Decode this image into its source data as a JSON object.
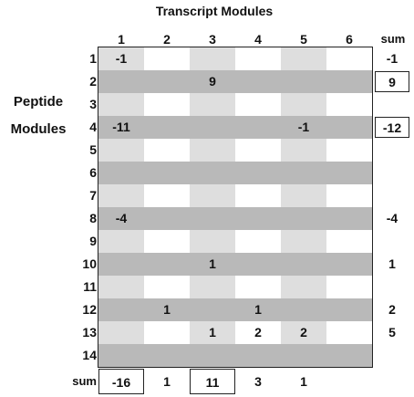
{
  "title": "Transcript Modules",
  "row_axis_label": [
    "Peptide",
    "Modules"
  ],
  "sum_label": "sum",
  "columns": [
    "1",
    "2",
    "3",
    "4",
    "5",
    "6"
  ],
  "rows": [
    "1",
    "2",
    "3",
    "4",
    "5",
    "6",
    "7",
    "8",
    "9",
    "10",
    "11",
    "12",
    "13",
    "14"
  ],
  "cells": [
    {
      "row": 1,
      "col": 1,
      "value": "-1"
    },
    {
      "row": 2,
      "col": 3,
      "value": "9"
    },
    {
      "row": 4,
      "col": 1,
      "value": "-11"
    },
    {
      "row": 4,
      "col": 5,
      "value": "-1"
    },
    {
      "row": 8,
      "col": 1,
      "value": "-4"
    },
    {
      "row": 10,
      "col": 3,
      "value": "1"
    },
    {
      "row": 12,
      "col": 2,
      "value": "1"
    },
    {
      "row": 12,
      "col": 4,
      "value": "1"
    },
    {
      "row": 13,
      "col": 3,
      "value": "1"
    },
    {
      "row": 13,
      "col": 4,
      "value": "2"
    },
    {
      "row": 13,
      "col": 5,
      "value": "2"
    }
  ],
  "row_sums": [
    {
      "row": 1,
      "value": "-1",
      "boxed": false
    },
    {
      "row": 2,
      "value": "9",
      "boxed": true
    },
    {
      "row": 4,
      "value": "-12",
      "boxed": true
    },
    {
      "row": 8,
      "value": "-4",
      "boxed": false
    },
    {
      "row": 10,
      "value": "1",
      "boxed": false
    },
    {
      "row": 12,
      "value": "2",
      "boxed": false
    },
    {
      "row": 13,
      "value": "5",
      "boxed": false
    }
  ],
  "col_sums": [
    {
      "col": 1,
      "value": "-16",
      "boxed": true
    },
    {
      "col": 2,
      "value": "1",
      "boxed": false
    },
    {
      "col": 3,
      "value": "11",
      "boxed": true
    },
    {
      "col": 4,
      "value": "3",
      "boxed": false
    },
    {
      "col": 5,
      "value": "1",
      "boxed": false
    }
  ],
  "colors": {
    "row_shade": "#b9b9b9",
    "col_shade": "#dedede",
    "border": "#222222"
  }
}
